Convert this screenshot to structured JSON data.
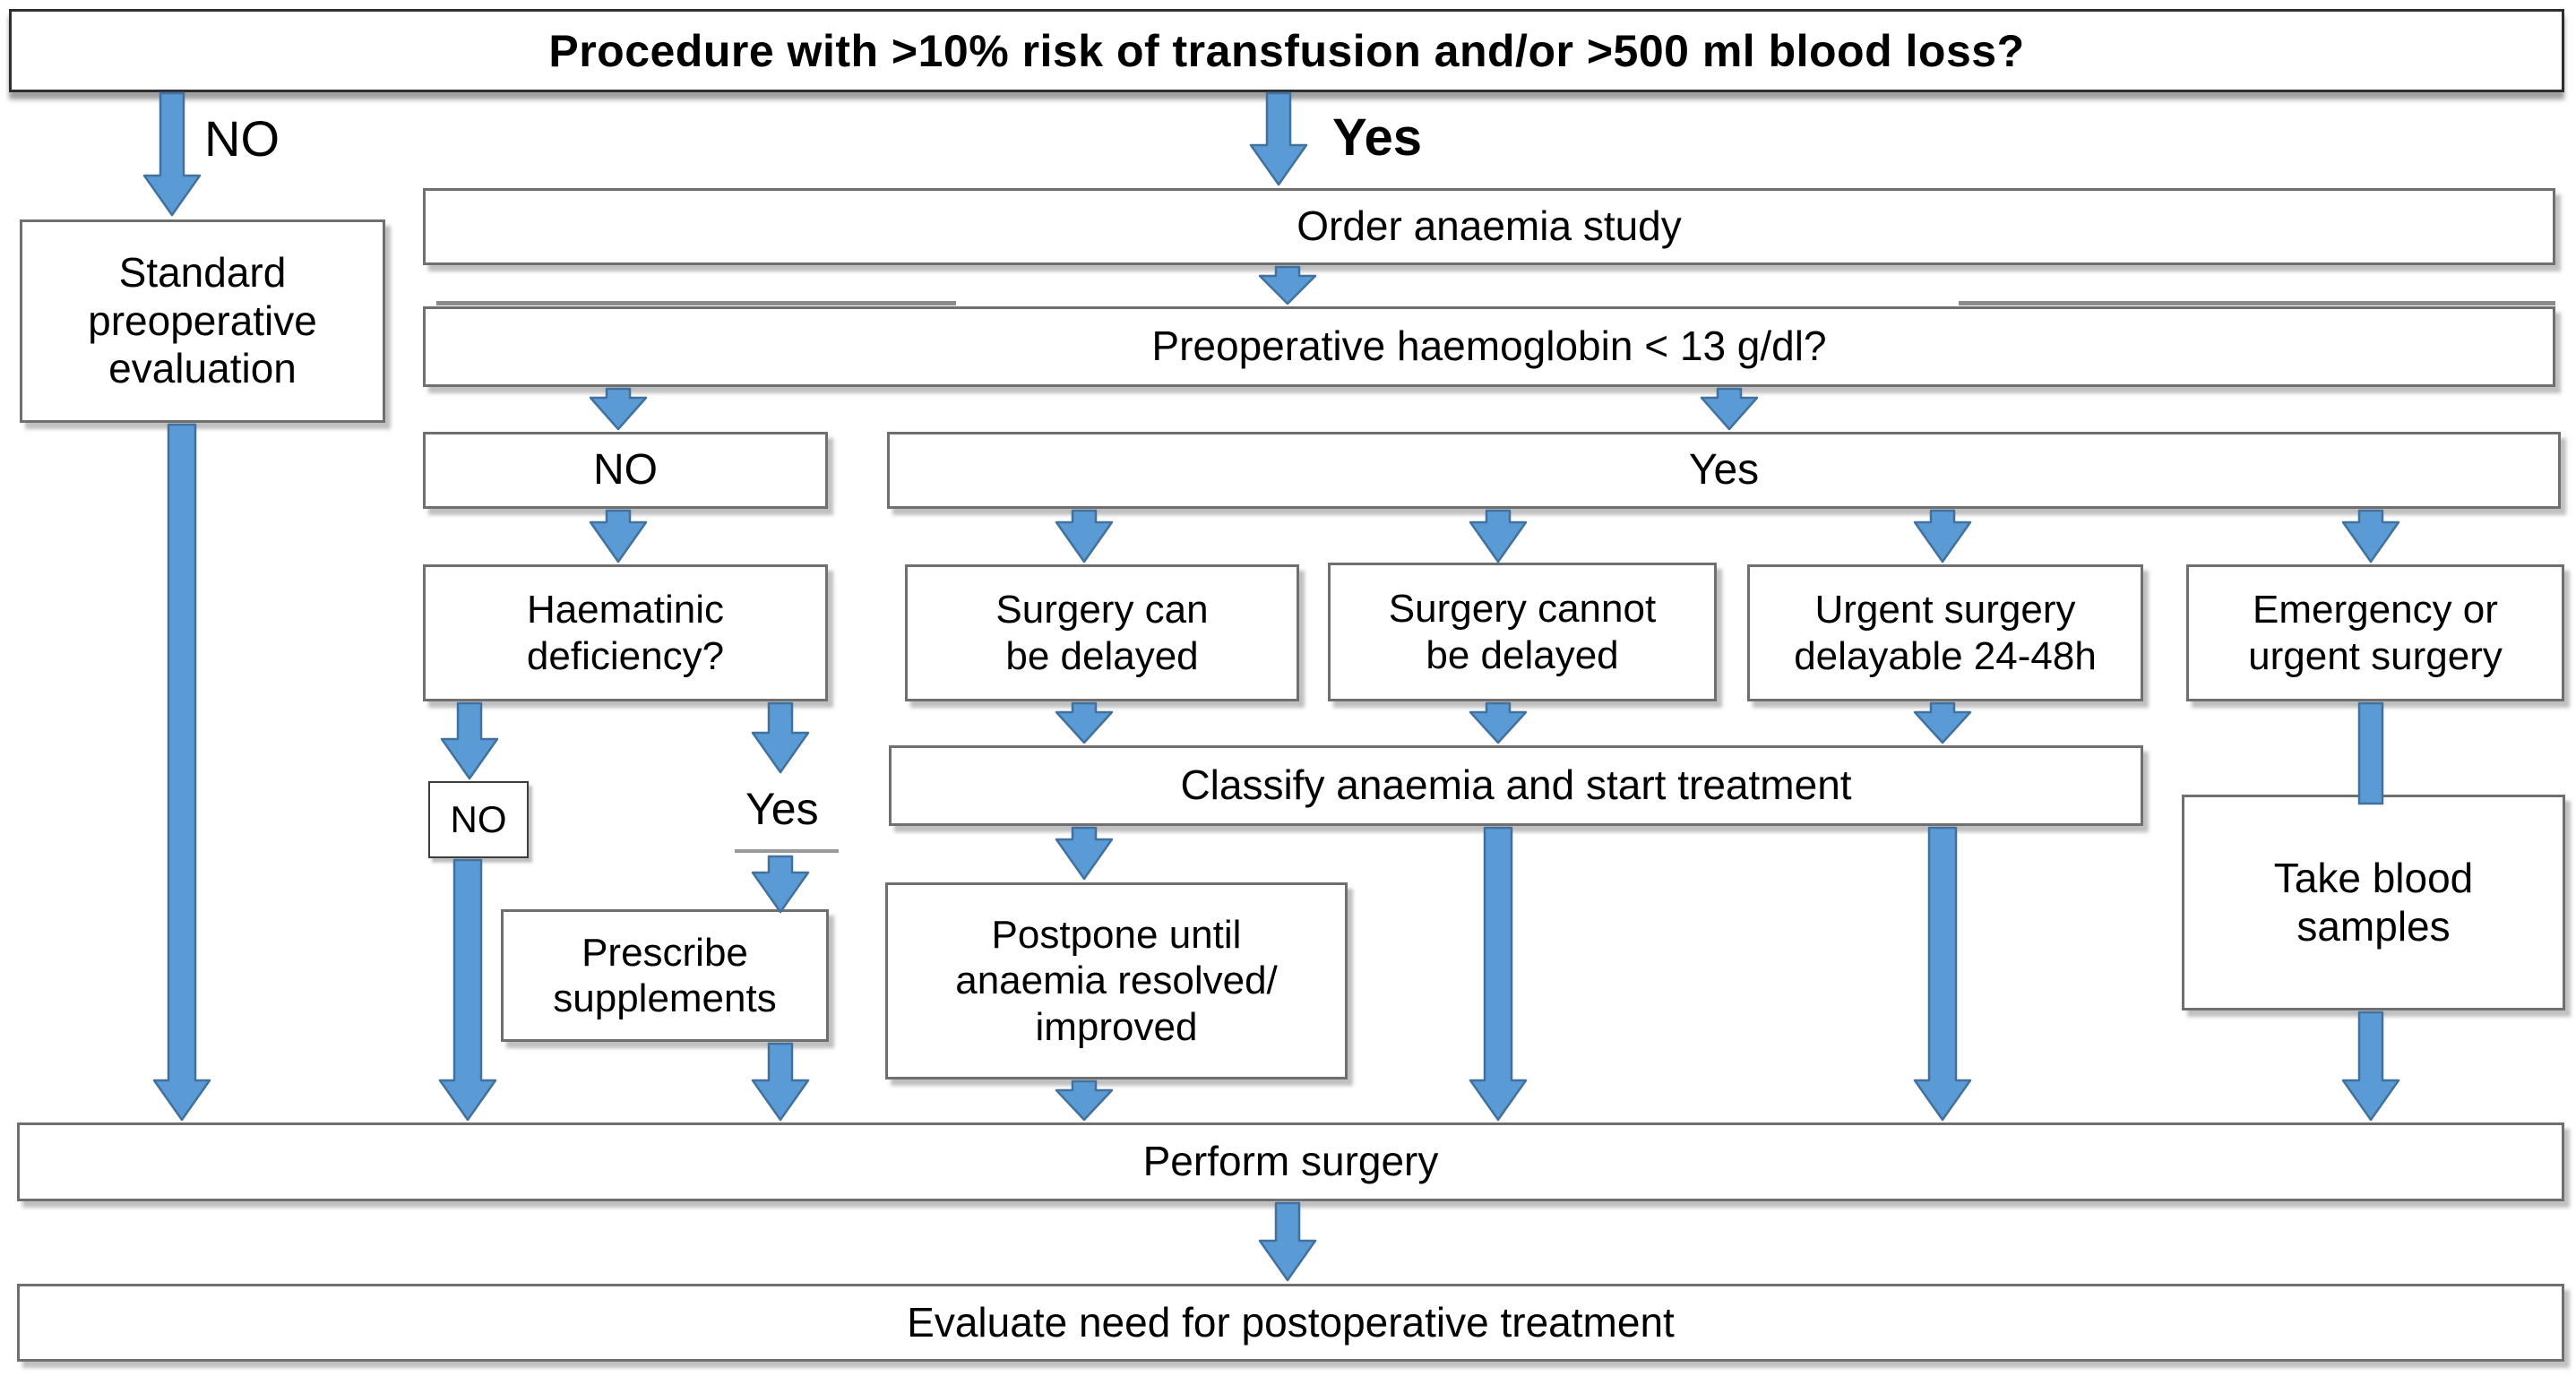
{
  "title": "Procedure with >10% risk of transfusion and/or >500 ml blood loss?",
  "branch_labels": {
    "top_no": "NO",
    "top_yes": "Yes",
    "haematinic_yes": "Yes"
  },
  "boxes": {
    "standard_preop": "Standard\npreoperative\nevaluation",
    "order_study": "Order  anaemia study",
    "preop_hb": "Preoperative haemoglobin < 13 g/dl?",
    "hb_no": "NO",
    "hb_yes": "Yes",
    "haematinic": "Haematinic\ndeficiency?",
    "surgery_can": "Surgery can\nbe delayed",
    "surgery_cannot": "Surgery cannot\nbe delayed",
    "urgent_surgery": "Urgent surgery\ndelayable 24-48h",
    "emergency": "Emergency or\nurgent surgery",
    "haematinic_no": "NO",
    "classify": "Classify anaemia and start treatment",
    "prescribe": "Prescribe\nsupplements",
    "postpone": "Postpone until\nanaemia resolved/\nimproved",
    "take_blood": "Take blood\nsamples",
    "perform": "Perform surgery",
    "evaluate": "Evaluate need for postoperative treatment"
  },
  "colors": {
    "arrow_fill": "#5b9bd5",
    "arrow_stroke": "#41719c",
    "box_border": "#6f6f6f",
    "title_border": "#2e2e2e",
    "text": "#000000",
    "background": "#ffffff"
  }
}
